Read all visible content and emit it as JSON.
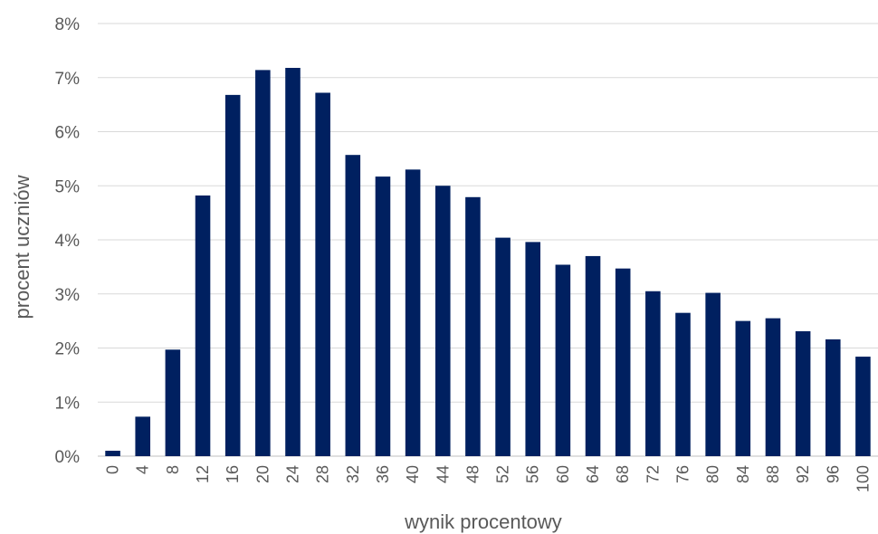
{
  "chart_data": {
    "type": "bar",
    "xlabel": "wynik procentowy",
    "ylabel": "procent uczniów",
    "ylim": [
      0,
      8
    ],
    "yticks": [
      "0%",
      "1%",
      "2%",
      "3%",
      "4%",
      "5%",
      "6%",
      "7%",
      "8%"
    ],
    "grid": true,
    "bar_color": "#002060",
    "categories": [
      "0",
      "4",
      "8",
      "12",
      "16",
      "20",
      "24",
      "28",
      "32",
      "36",
      "40",
      "44",
      "48",
      "52",
      "56",
      "60",
      "64",
      "68",
      "72",
      "76",
      "80",
      "84",
      "88",
      "92",
      "96",
      "100"
    ],
    "values": [
      0.1,
      0.73,
      1.97,
      4.82,
      6.68,
      7.14,
      7.18,
      6.72,
      5.57,
      5.17,
      5.3,
      5.0,
      4.79,
      4.04,
      3.96,
      3.54,
      3.7,
      3.47,
      3.05,
      2.65,
      3.02,
      2.5,
      2.55,
      2.31,
      2.16,
      1.84
    ]
  }
}
